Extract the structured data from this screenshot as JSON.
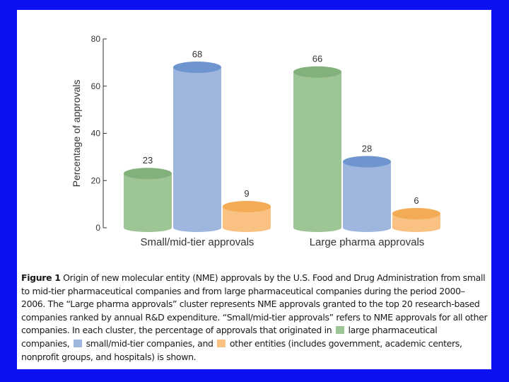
{
  "chart_data": {
    "type": "bar",
    "ylabel": "Percentage of approvals",
    "ylim": [
      0,
      80
    ],
    "yticks": [
      0,
      20,
      40,
      60,
      80
    ],
    "categories": [
      "Small/mid-tier approvals",
      "Large pharma approvals"
    ],
    "series": [
      {
        "name": "",
        "color": "#9dc596",
        "top_color": "#82b17c",
        "values": [
          23,
          66
        ]
      },
      {
        "name": "",
        "color": "#9fb6de",
        "top_color": "#6e95d0",
        "values": [
          68,
          28
        ]
      },
      {
        "name": "",
        "color": "#f9c282",
        "top_color": "#f4ab55",
        "values": [
          9,
          6
        ]
      }
    ],
    "data_labels": [
      [
        "23",
        "66"
      ],
      [
        "68",
        "28"
      ],
      [
        "9",
        "6"
      ]
    ],
    "grid": false
  },
  "caption": {
    "figure_label": "Figure 1",
    "text_1": " Origin of new molecular entity (NME) approvals by the U.S. Food and Drug Administration from small to mid-tier pharmaceutical companies and from large pharmaceutical companies during the period 2000–2006. The “Large pharma approvals” cluster represents NME approvals granted to the top 20 research-based companies ranked by annual R&D expenditure. “Small/mid-tier approvals” refers to NME approvals for all other companies. In each cluster, the percentage of approvals that originated in ",
    "text_2": " large pharmaceutical companies, ",
    "text_3": " small/mid-tier companies, and ",
    "text_4": " other entities (includes government, academic centers, nonprofit groups, and hospitals) is shown.",
    "swatch_colors": [
      "#9dc596",
      "#9fb6de",
      "#f9c282"
    ]
  }
}
